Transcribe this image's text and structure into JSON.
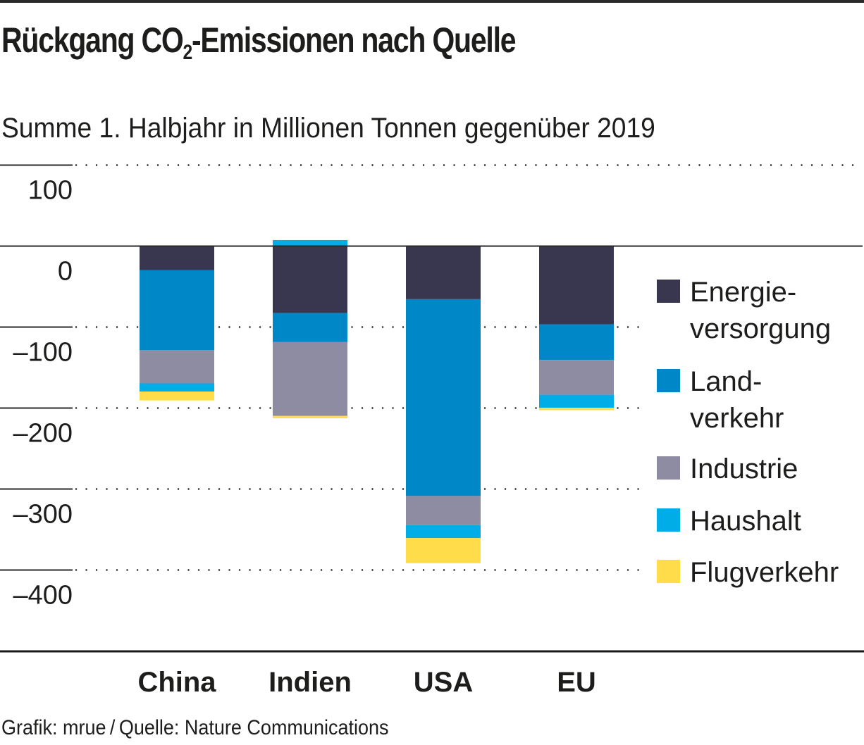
{
  "chart_data": {
    "type": "bar",
    "stacked": true,
    "title": "Rückgang CO2-Emissionen nach Quelle",
    "title_parts": {
      "before": "Rückgang CO",
      "subscript": "2",
      "after": "-Emissionen nach Quelle"
    },
    "subtitle": "Summe 1. Halbjahr in Millionen Tonnen gegenüber 2019",
    "xlabel": "",
    "ylabel": "",
    "ylim": [
      -400,
      100
    ],
    "yticks": [
      100,
      0,
      -100,
      -200,
      -300,
      -400
    ],
    "ytick_labels": [
      "100",
      "0",
      "–100",
      "–200",
      "–300",
      "–400"
    ],
    "grid": true,
    "legend_position": "right",
    "categories": [
      "China",
      "Indien",
      "USA",
      "EU"
    ],
    "series": [
      {
        "name": "Energieversorgung",
        "label_lines": [
          "Energie-",
          "versorgung"
        ],
        "color": "#393750",
        "values": [
          -30,
          -83,
          -66,
          -97
        ]
      },
      {
        "name": "Landverkehr",
        "label_lines": [
          "Land-",
          "verkehr"
        ],
        "color": "#0087c8",
        "values": [
          -99,
          -36,
          -243,
          -44
        ]
      },
      {
        "name": "Industrie",
        "label_lines": [
          "Industrie"
        ],
        "color": "#8e8ca2",
        "values": [
          -41,
          -91,
          -36,
          -43
        ]
      },
      {
        "name": "Haushalt",
        "label_lines": [
          "Haushalt"
        ],
        "color": "#00ade6",
        "values": [
          -10,
          7,
          -16,
          -16
        ]
      },
      {
        "name": "Flugverkehr",
        "label_lines": [
          "Flugverkehr"
        ],
        "color": "#ffdd4a",
        "values": [
          -11,
          -3,
          -31,
          -3
        ]
      }
    ]
  },
  "footer": "Grafik: mrue / Quelle: Nature Communications"
}
